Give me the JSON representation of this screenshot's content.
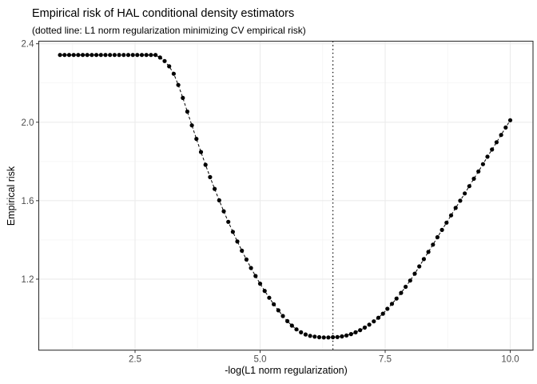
{
  "chart_data": {
    "type": "scatter",
    "title": "Empirical risk of HAL conditional density estimators",
    "subtitle": "(dotted line: L1 norm regularization minimizing CV empirical risk)",
    "xlabel": "-log(L1 norm regularization)",
    "ylabel": "Empirical risk",
    "xlim": [
      0.575,
      10.455
    ],
    "ylim": [
      0.838,
      2.413
    ],
    "grid": true,
    "legend_position": "none",
    "x_ticks": {
      "values": [
        2.5,
        5.0,
        7.5,
        10.0
      ],
      "labels": [
        "2.5",
        "5.0",
        "7.5",
        "10.0"
      ]
    },
    "y_ticks": {
      "values": [
        1.2,
        1.6,
        2.0,
        2.4
      ],
      "labels": [
        "1.2",
        "1.6",
        "2.0",
        "2.4"
      ]
    },
    "x_minor": [
      1.25,
      3.75,
      6.25,
      8.75
    ],
    "y_minor": [
      1.0,
      1.4,
      1.8,
      2.2
    ],
    "vline": {
      "x": 6.455,
      "style": "dotted",
      "meaning": "L1 norm regularization minimizing CV empirical risk"
    },
    "series": [
      {
        "name": "empirical-risk",
        "marker": "filled-circle",
        "line_style": "dashed",
        "x": [
          1,
          1.091,
          1.182,
          1.273,
          1.364,
          1.455,
          1.545,
          1.636,
          1.727,
          1.818,
          1.909,
          2,
          2.091,
          2.182,
          2.273,
          2.364,
          2.455,
          2.545,
          2.636,
          2.727,
          2.818,
          2.909,
          3,
          3.091,
          3.182,
          3.273,
          3.364,
          3.455,
          3.545,
          3.636,
          3.727,
          3.818,
          3.909,
          4,
          4.091,
          4.182,
          4.273,
          4.364,
          4.455,
          4.545,
          4.636,
          4.727,
          4.818,
          4.909,
          5,
          5.091,
          5.182,
          5.273,
          5.364,
          5.455,
          5.545,
          5.636,
          5.727,
          5.818,
          5.909,
          6,
          6.091,
          6.182,
          6.273,
          6.364,
          6.455,
          6.545,
          6.636,
          6.727,
          6.818,
          6.909,
          7,
          7.091,
          7.182,
          7.273,
          7.364,
          7.455,
          7.545,
          7.636,
          7.727,
          7.818,
          7.909,
          8,
          8.091,
          8.182,
          8.273,
          8.364,
          8.455,
          8.545,
          8.636,
          8.727,
          8.818,
          8.909,
          9,
          9.091,
          9.182,
          9.273,
          9.364,
          9.455,
          9.545,
          9.636,
          9.727,
          9.818,
          9.909,
          10
        ],
        "y": [
          2.343,
          2.343,
          2.343,
          2.343,
          2.343,
          2.343,
          2.343,
          2.343,
          2.343,
          2.343,
          2.343,
          2.343,
          2.343,
          2.343,
          2.343,
          2.343,
          2.343,
          2.343,
          2.343,
          2.343,
          2.343,
          2.343,
          2.33,
          2.312,
          2.285,
          2.247,
          2.19,
          2.124,
          2.054,
          1.984,
          1.915,
          1.848,
          1.783,
          1.72,
          1.66,
          1.602,
          1.546,
          1.492,
          1.441,
          1.392,
          1.345,
          1.3,
          1.257,
          1.216,
          1.177,
          1.14,
          1.105,
          1.072,
          1.041,
          1.012,
          0.986,
          0.963,
          0.944,
          0.929,
          0.918,
          0.911,
          0.907,
          0.904,
          0.903,
          0.903,
          0.904,
          0.905,
          0.908,
          0.913,
          0.92,
          0.929,
          0.94,
          0.953,
          0.968,
          0.985,
          1.003,
          1.024,
          1.049,
          1.074,
          1.101,
          1.13,
          1.161,
          1.193,
          1.228,
          1.265,
          1.302,
          1.339,
          1.376,
          1.414,
          1.451,
          1.488,
          1.525,
          1.563,
          1.6,
          1.637,
          1.674,
          1.712,
          1.749,
          1.786,
          1.824,
          1.861,
          1.898,
          1.935,
          1.973,
          2.01
        ]
      }
    ],
    "colors": {
      "points": "#000000",
      "line": "#000000",
      "grid_major": "#ebebeb",
      "grid_minor": "#f5f5f5",
      "panel_border": "#333333",
      "tick_mark": "#333333",
      "tick_label": "#4d4d4d",
      "background": "#ffffff"
    }
  }
}
